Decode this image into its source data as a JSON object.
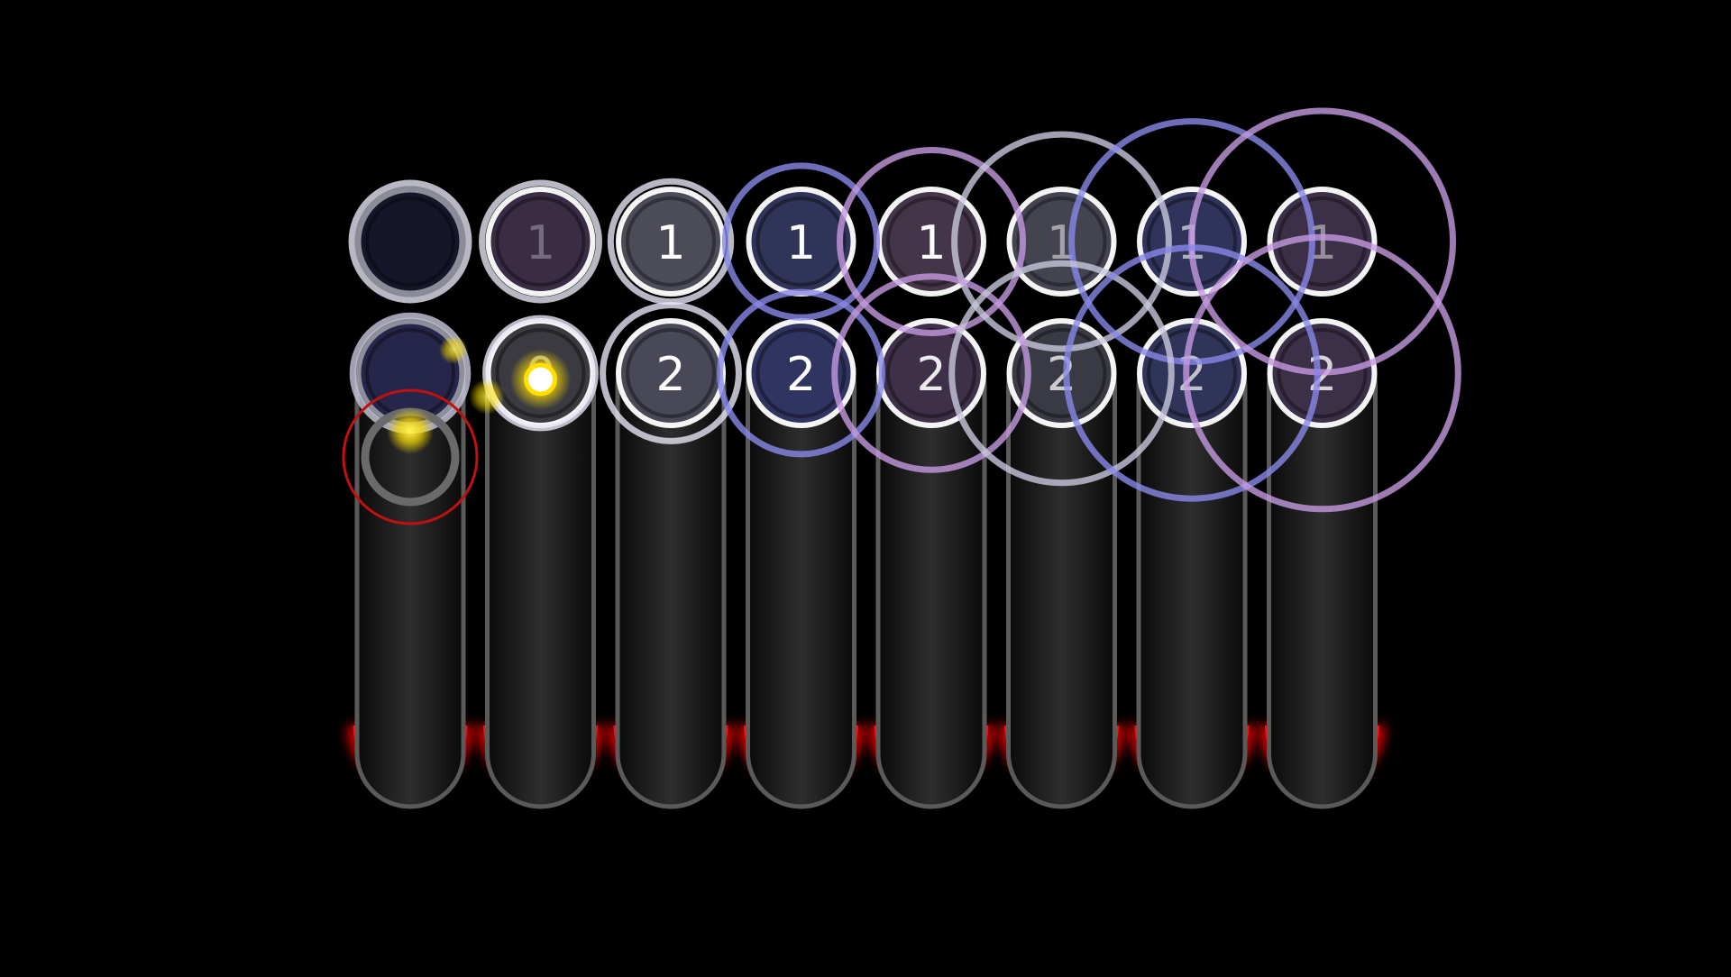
{
  "game": {
    "title": "",
    "background_color": "#000000",
    "lane_count": 8,
    "lane_track_color": "#1c1c1c",
    "lane_hit_glow_color": "#e00000",
    "current_hit_color": "#ffe000",
    "approach_ring_colors": [
      "#e6e6f5",
      "#8888e8",
      "#c49ae0",
      "#c8c8dc"
    ],
    "note_rows": [
      {
        "row": "top",
        "labels": [
          "",
          "1",
          "1",
          "1",
          "1",
          "1",
          "1",
          "1"
        ],
        "label_opacity": [
          0,
          0.3,
          1,
          1,
          1,
          0.5,
          0.6,
          0.45
        ],
        "fill_colors": [
          "#16162a",
          "#3a2c44",
          "#4c4c58",
          "#303458",
          "#443648",
          "#444450",
          "#30345a",
          "#3c3048"
        ],
        "approach_ring": [
          {
            "color": "#e6e6f5",
            "scale": 1.12
          },
          {
            "color": "#e6e6f5",
            "scale": 1.12
          },
          {
            "color": "#e6e6f5",
            "scale": 1.15
          },
          {
            "color": "#8888e8",
            "scale": 1.45
          },
          {
            "color": "#c49ae0",
            "scale": 1.75
          },
          {
            "color": "#c8c8dc",
            "scale": 2.05
          },
          {
            "color": "#8888e8",
            "scale": 2.3
          },
          {
            "color": "#c49ae0",
            "scale": 2.5
          }
        ]
      },
      {
        "row": "bottom",
        "labels": [
          "",
          "0",
          "2",
          "2",
          "2",
          "2",
          "2",
          "2"
        ],
        "label_opacity": [
          0,
          0.6,
          1,
          1,
          0.9,
          0.75,
          0.7,
          0.8
        ],
        "fill_colors": [
          "#26264a",
          "#3a3a40",
          "#484856",
          "#303460",
          "#3e3048",
          "#3a3a44",
          "#303458",
          "#3c3048"
        ],
        "approach_ring": [
          {
            "color": "#c8c8dc",
            "scale": 1.1
          },
          {
            "color": "#e6e6f5",
            "scale": 1.05
          },
          {
            "color": "#e6e6f5",
            "scale": 1.3
          },
          {
            "color": "#8888e8",
            "scale": 1.55
          },
          {
            "color": "#c49ae0",
            "scale": 1.85
          },
          {
            "color": "#c8c8dc",
            "scale": 2.1
          },
          {
            "color": "#8888e8",
            "scale": 2.4
          },
          {
            "color": "#c49ae0",
            "scale": 2.6
          }
        ]
      }
    ]
  }
}
